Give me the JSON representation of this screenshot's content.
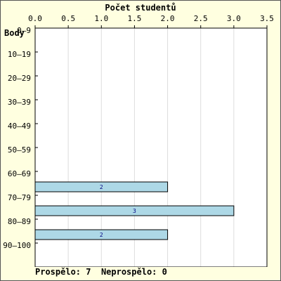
{
  "chart_data": {
    "type": "bar",
    "orientation": "horizontal",
    "title": "Počet studentů",
    "ylabel": "Body",
    "xlabel": "",
    "categories": [
      "0–9",
      "10–19",
      "20–29",
      "30–39",
      "40–49",
      "50–59",
      "60–69",
      "70–79",
      "80–89",
      "90–100"
    ],
    "values": [
      0,
      0,
      0,
      0,
      0,
      0,
      2,
      3,
      2,
      0
    ],
    "data_labels": [
      "",
      "",
      "",
      "",
      "",
      "",
      "2",
      "3",
      "2",
      ""
    ],
    "xlim": [
      0,
      3.5
    ],
    "xticks": [
      "0.0",
      "0.5",
      "1.0",
      "1.5",
      "2.0",
      "2.5",
      "3.0",
      "3.5"
    ],
    "x_axis_position": "top",
    "grid": true,
    "legend": "none"
  },
  "footer": {
    "passed": "Prospělo: 7",
    "failed": "Neprospělo: 0"
  },
  "colors": {
    "background": "#ffffe0",
    "plot_background": "#ffffff",
    "bar_fill": "#add8e6",
    "bar_stroke": "#000000",
    "data_label": "#000080",
    "grid": "#dddddd"
  }
}
